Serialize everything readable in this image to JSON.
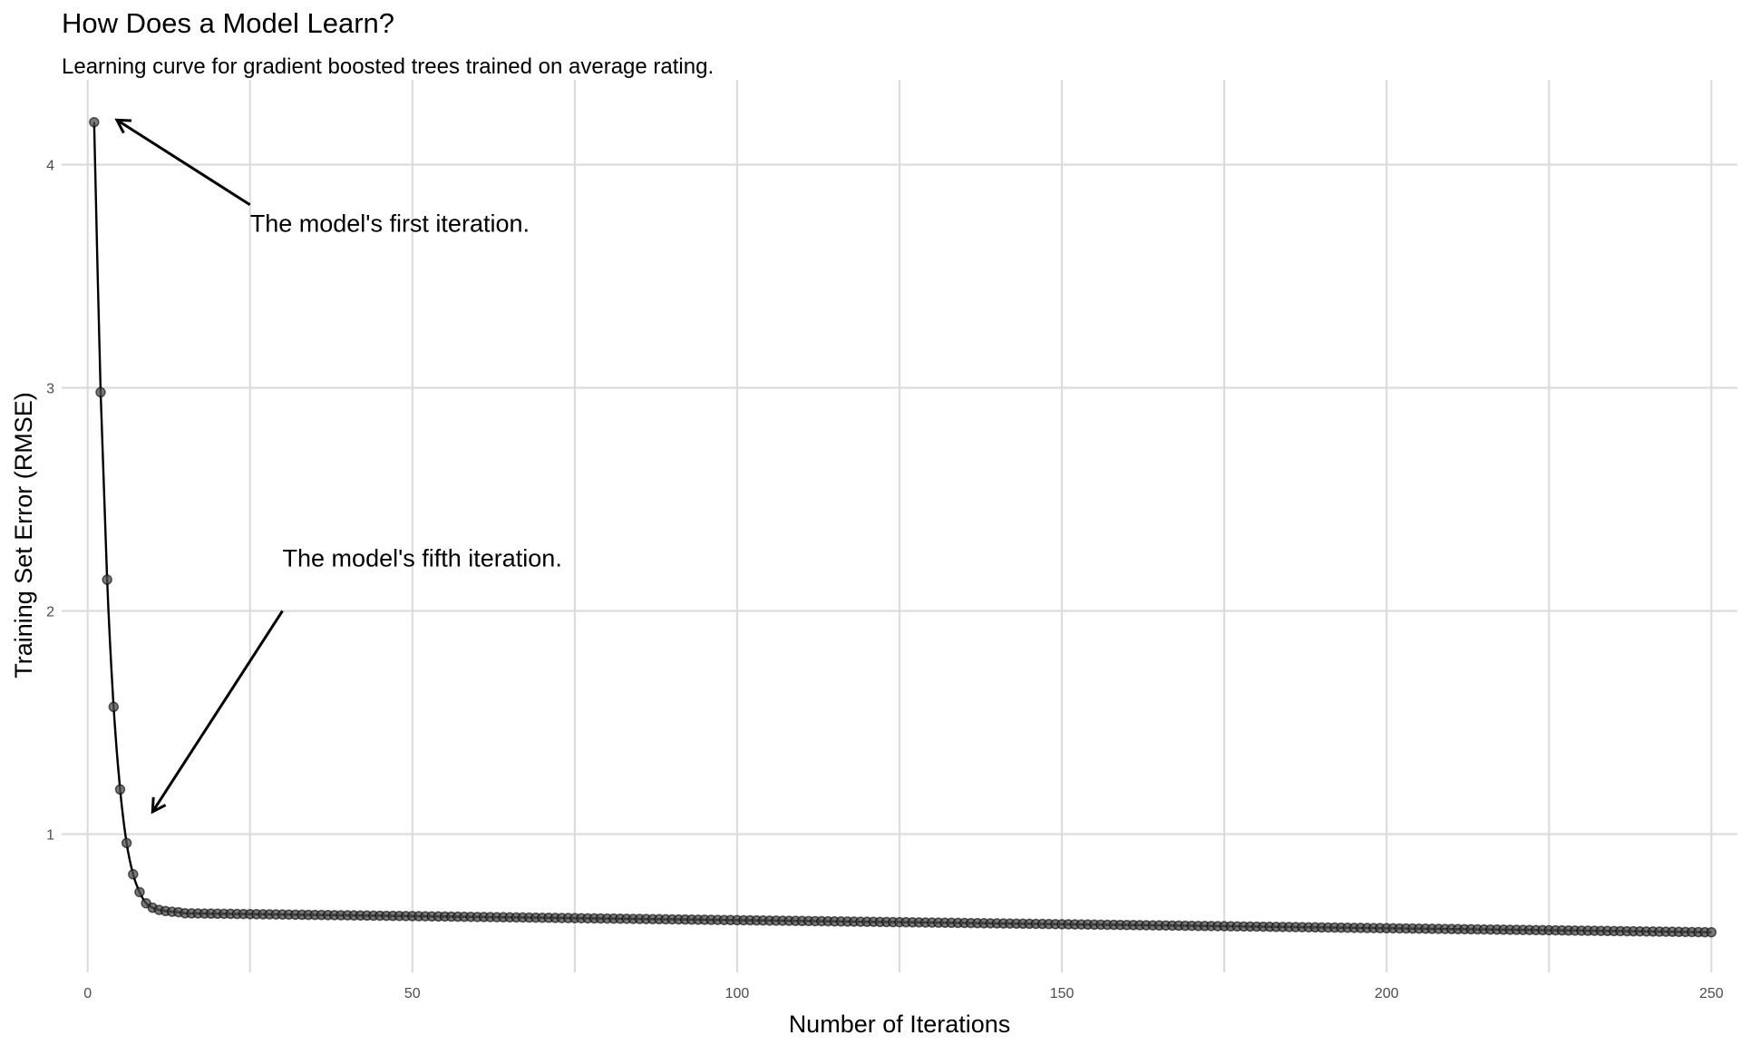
{
  "chart_data": {
    "type": "line",
    "title": "How Does a Model Learn?",
    "subtitle": "Learning curve for gradient boosted trees trained on average rating.",
    "xlabel": "Number of Iterations",
    "ylabel": "Training Set Error (RMSE)",
    "xlim": [
      -4,
      254
    ],
    "ylim": [
      0.38,
      4.38
    ],
    "xticks": [
      0,
      50,
      100,
      150,
      200,
      250
    ],
    "yticks": [
      1,
      2,
      3,
      4
    ],
    "grid": true,
    "legend": "none",
    "series": [
      {
        "iterations_start": 1,
        "iterations_end": 250,
        "early_values": [
          4.19,
          2.98,
          2.14,
          1.57,
          1.2,
          0.96,
          0.82,
          0.74,
          0.69,
          0.67,
          0.66,
          0.655,
          0.652,
          0.65
        ],
        "plateau": {
          "from_iteration": 15,
          "start_value": 0.645,
          "end_value": 0.56
        },
        "color": "#000000",
        "point_color": "#4d4d4d"
      }
    ],
    "annotations": [
      {
        "text": "The model's first iteration.",
        "arrow_from": [
          25,
          3.82
        ],
        "arrow_to": [
          4.5,
          4.2
        ],
        "text_at": [
          25,
          3.7
        ]
      },
      {
        "text": "The model's fifth iteration.",
        "arrow_from": [
          30,
          2.0
        ],
        "arrow_to": [
          10,
          1.1
        ],
        "text_at": [
          30,
          2.2
        ]
      }
    ]
  }
}
